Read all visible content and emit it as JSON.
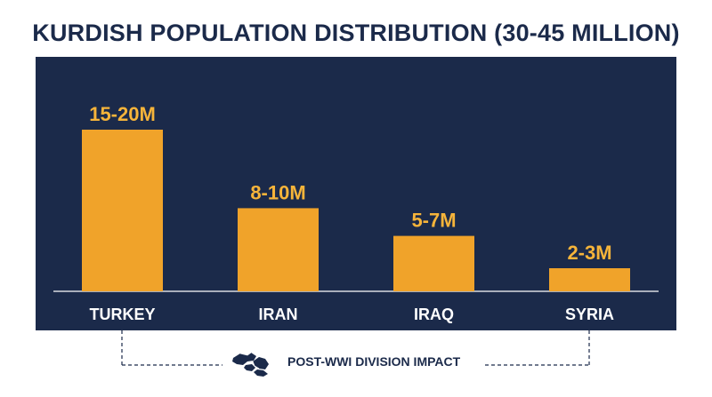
{
  "title": "KURDISH POPULATION DISTRIBUTION (30-45 MILLION)",
  "footer": {
    "label": "POST-WWI DIVISION IMPACT",
    "icon": "map-of-kurdistan-icon"
  },
  "colors": {
    "panel": "#1b2a4a",
    "bar": "#f0a32a",
    "bar_label": "#f6b43a",
    "text_light": "#ffffff",
    "text_dark": "#1b2a4a"
  },
  "chart_data": {
    "type": "bar",
    "title": "KURDISH POPULATION DISTRIBUTION (30-45 MILLION)",
    "categories": [
      "TURKEY",
      "IRAN",
      "IRAQ",
      "SYRIA"
    ],
    "values": [
      17.5,
      9,
      6,
      2.5
    ],
    "value_labels": [
      "15-20M",
      "8-10M",
      "5-7M",
      "2-3M"
    ],
    "ylim": [
      0,
      20
    ],
    "xlabel": "",
    "ylabel": "",
    "grid": false,
    "legend": "none"
  }
}
